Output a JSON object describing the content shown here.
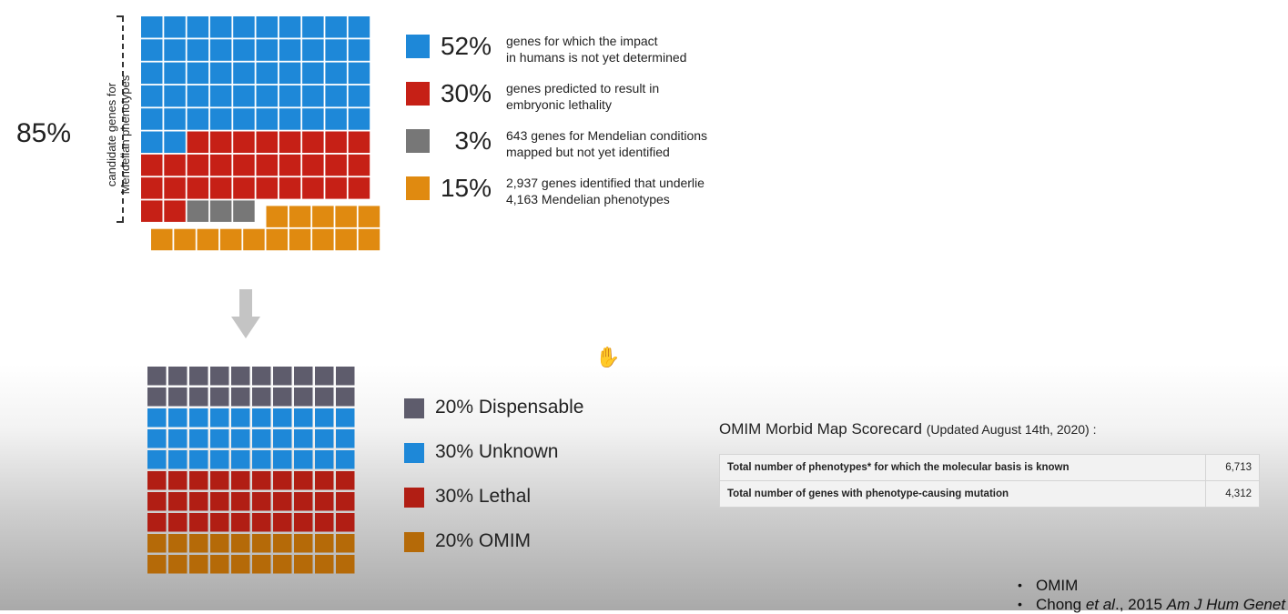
{
  "top_chart": {
    "big_percent": "85%",
    "vertical_label_line1": "candidate genes for",
    "vertical_label_line2": "Mendelian phenotypes"
  },
  "legend_top": [
    {
      "percent": "52%",
      "description": "genes for which the impact\nin humans is not yet determined",
      "color": "#1e88d8"
    },
    {
      "percent": "30%",
      "description": "genes predicted to result in\nembryonic lethality",
      "color": "#c62016"
    },
    {
      "percent": "3%",
      "description": "643 genes for Mendelian conditions\nmapped but not yet identified",
      "color": "#777777"
    },
    {
      "percent": "15%",
      "description": "2,937 genes identified that underlie\n4,163 Mendelian phenotypes",
      "color": "#e08a10"
    }
  ],
  "legend_bottom": [
    {
      "label": "20% Dispensable",
      "color": "#5e5c6c"
    },
    {
      "label": "30% Unknown",
      "color": "#1e88d8"
    },
    {
      "label": "30% Lethal",
      "color": "#b11e14"
    },
    {
      "label": "20% OMIM",
      "color": "#b56a08"
    }
  ],
  "scorecard": {
    "title": "OMIM Morbid Map Scorecard",
    "updated": "(Updated August 14th, 2020) :",
    "rows": [
      {
        "label": "Total number of phenotypes* for which the molecular basis is known",
        "value": "6,713"
      },
      {
        "label": "Total number of genes with phenotype-causing mutation",
        "value": "4,312"
      }
    ]
  },
  "references": [
    {
      "text": "OMIM"
    },
    {
      "pre": "Chong ",
      "italic1": "et al",
      "mid": "., 2015 ",
      "italic2": "Am J Hum Genet"
    }
  ],
  "icons": {
    "arrow": "down-arrow-icon",
    "cursor": "hand-cursor-icon"
  },
  "chart_data": [
    {
      "type": "waffle",
      "series": [
        {
          "name": "genes for which the impact in humans is not yet determined",
          "value": 52,
          "color": "#1e88d8"
        },
        {
          "name": "genes predicted to result in embryonic lethality",
          "value": 30,
          "color": "#c62016"
        },
        {
          "name": "643 genes for Mendelian conditions mapped but not yet identified",
          "value": 3,
          "color": "#777777"
        },
        {
          "name": "2,937 genes identified that underlie 4,163 Mendelian phenotypes",
          "value": 15,
          "color": "#e08a10"
        }
      ]
    },
    {
      "type": "waffle",
      "series": [
        {
          "name": "Dispensable",
          "value": 20,
          "color": "#5e5c6c"
        },
        {
          "name": "Unknown",
          "value": 30,
          "color": "#1e88d8"
        },
        {
          "name": "Lethal",
          "value": 30,
          "color": "#b11e14"
        },
        {
          "name": "OMIM",
          "value": 20,
          "color": "#b56a08"
        }
      ]
    }
  ]
}
